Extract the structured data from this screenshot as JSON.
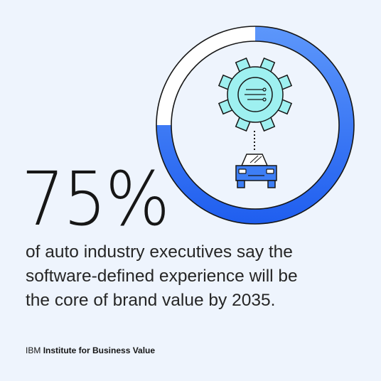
{
  "chart_data": {
    "type": "pie",
    "values": [
      75,
      25
    ],
    "colors": [
      "#3d7ef5",
      "#ffffff"
    ],
    "percent_label": "75%"
  },
  "caption": {
    "line1": "of auto industry executives say the",
    "line2": "software-defined experience will be",
    "line3": "the core of brand value by 2035."
  },
  "brand": {
    "prefix": "IBM",
    "name": "Institute for Business Value"
  },
  "icons": {
    "gear": "gear-icon",
    "car": "car-icon"
  },
  "colors": {
    "background": "#eef4fd",
    "accent_light": "#5b93fb",
    "accent_dark": "#1e5ef0",
    "gear_fill": "#9ef0f0",
    "car_fill": "#3d7ef5"
  }
}
